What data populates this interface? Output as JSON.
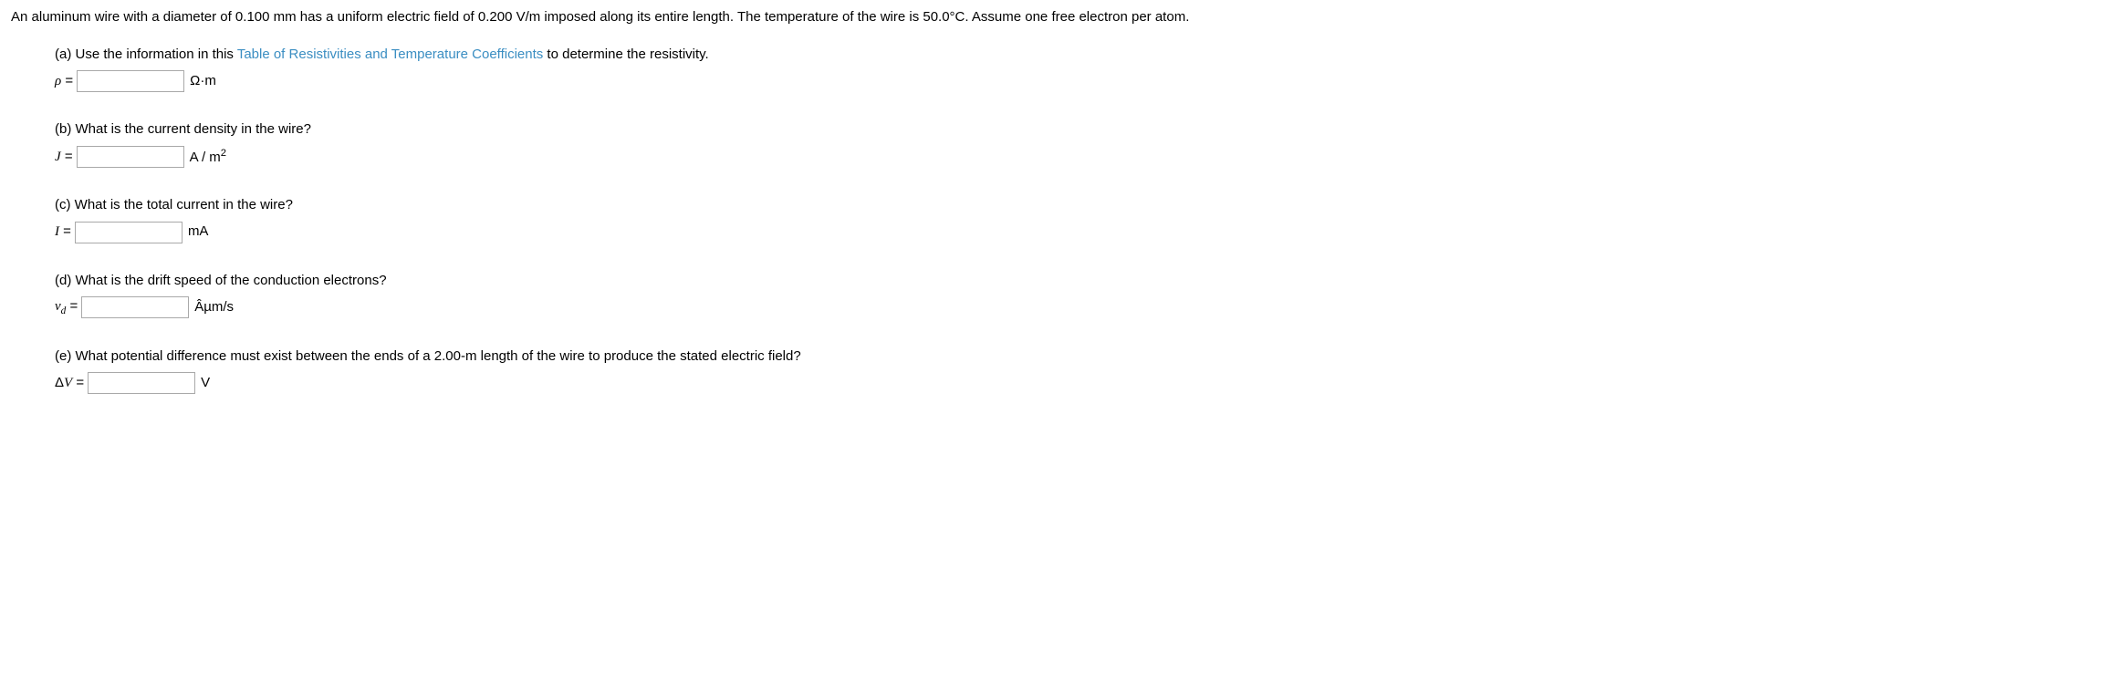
{
  "intro": "An aluminum wire with a diameter of 0.100 mm has a uniform electric field of 0.200 V/m imposed along its entire length. The temperature of the wire is 50.0°C. Assume one free electron per atom.",
  "parts": {
    "a": {
      "prefix": "(a) Use the information in this ",
      "link": "Table of Resistivities and Temperature Coefficients",
      "suffix": " to determine the resistivity.",
      "var_html": "ρ",
      "eq": " = ",
      "unit": "Ω·m"
    },
    "b": {
      "question": "(b) What is the current density in the wire?",
      "var_html": "J",
      "eq": " = ",
      "unit_pre": "A / m",
      "unit_sup": "2"
    },
    "c": {
      "question": "(c) What is the total current in the wire?",
      "var_html": "I",
      "eq": " = ",
      "unit": "mA"
    },
    "d": {
      "question": "(d) What is the drift speed of the conduction electrons?",
      "var_html": "v",
      "var_sub": "d",
      "eq": " = ",
      "unit": "Âµm/s"
    },
    "e": {
      "question": "(e) What potential difference must exist between the ends of a 2.00-m length of the wire to produce the stated electric field?",
      "var_pre": "Δ",
      "var_html": "V",
      "eq": " = ",
      "unit": "V"
    }
  }
}
